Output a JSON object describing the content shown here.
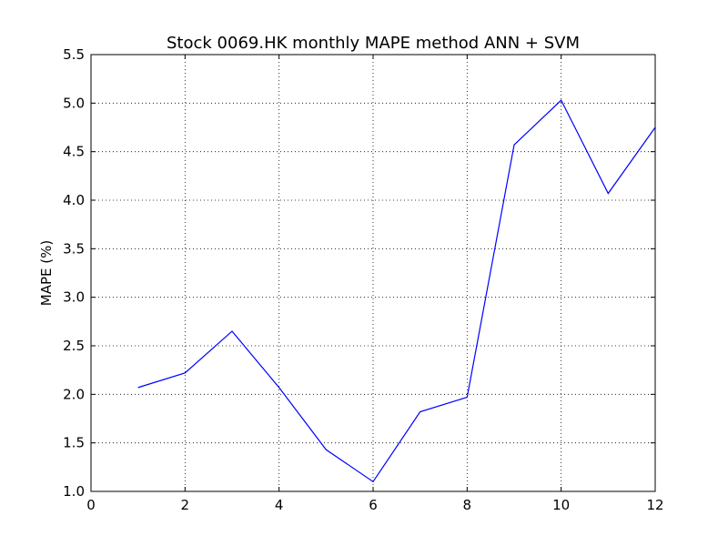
{
  "chart_data": {
    "type": "line",
    "title": "Stock 0069.HK monthly MAPE method ANN + SVM",
    "xlabel": "",
    "ylabel": "MAPE (%)",
    "xlim": [
      0,
      12
    ],
    "ylim": [
      1.0,
      5.5
    ],
    "x_ticks": [
      0,
      2,
      4,
      6,
      8,
      10,
      12
    ],
    "x_tick_labels": [
      "0",
      "2",
      "4",
      "6",
      "8",
      "10",
      "12"
    ],
    "y_ticks": [
      1.0,
      1.5,
      2.0,
      2.5,
      3.0,
      3.5,
      4.0,
      4.5,
      5.0,
      5.5
    ],
    "y_tick_labels": [
      "1.0",
      "1.5",
      "2.0",
      "2.5",
      "3.0",
      "3.5",
      "4.0",
      "4.5",
      "5.0",
      "5.5"
    ],
    "grid": true,
    "series": [
      {
        "color": "#0000ff",
        "x": [
          1,
          2,
          3,
          4,
          5,
          6,
          7,
          8,
          9,
          10,
          11,
          12
        ],
        "values": [
          2.07,
          2.22,
          2.65,
          2.07,
          1.43,
          1.1,
          1.82,
          1.97,
          4.57,
          5.03,
          4.07,
          4.75
        ]
      }
    ]
  }
}
